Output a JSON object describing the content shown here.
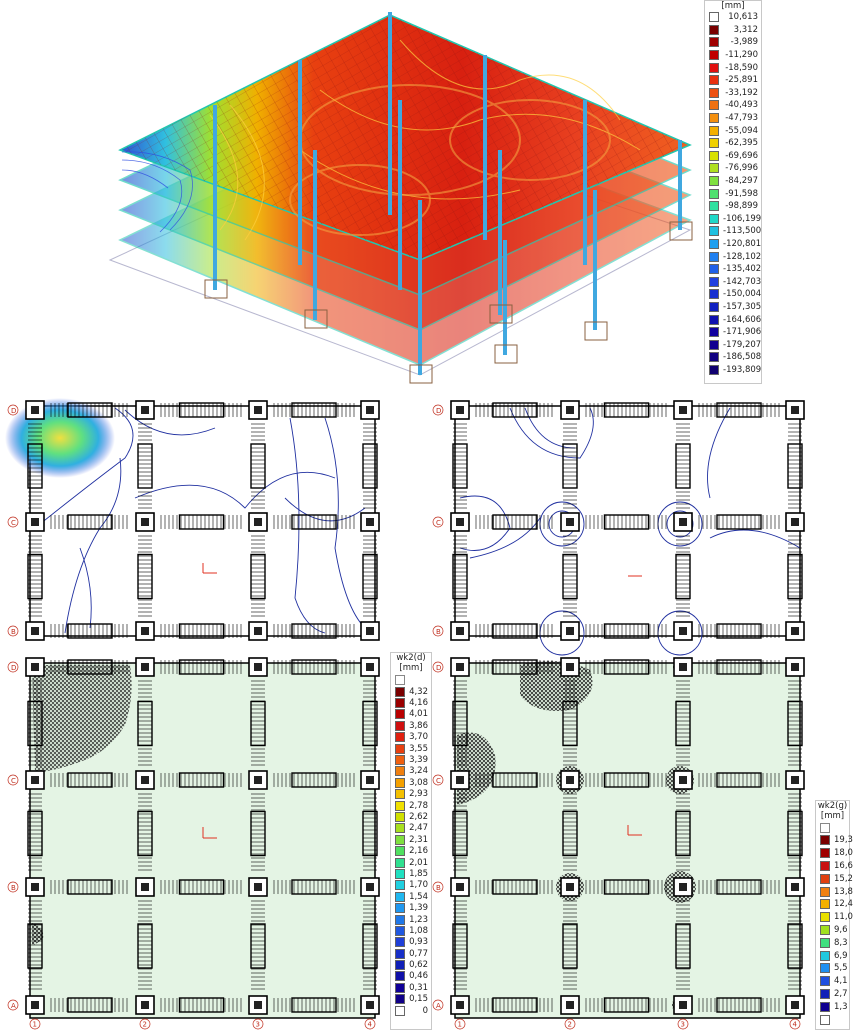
{
  "legend_top": {
    "header": "[mm]",
    "colors": [
      "#ffffff",
      "#7a0000",
      "#a00000",
      "#c00000",
      "#e01010",
      "#e83010",
      "#ee5010",
      "#f07010",
      "#f49010",
      "#f4b000",
      "#f0d000",
      "#d8e000",
      "#b0e020",
      "#80e040",
      "#50e070",
      "#30e0a0",
      "#20d8c8",
      "#20c0e0",
      "#20a0f0",
      "#2080f0",
      "#2060e8",
      "#2040e0",
      "#1830d0",
      "#1020c0",
      "#1010b0",
      "#1000a0",
      "#100090",
      "#100080",
      "#100070"
    ],
    "labels": [
      "10,613",
      "3,312",
      "-3,989",
      "-11,290",
      "-18,590",
      "-25,891",
      "-33,192",
      "-40,493",
      "-47,793",
      "-55,094",
      "-62,395",
      "-69,696",
      "-76,996",
      "-84,297",
      "-91,598",
      "-98,899",
      "-106,199",
      "-113,500",
      "-120,801",
      "-128,102",
      "-135,402",
      "-142,703",
      "-150,004",
      "-157,305",
      "-164,606",
      "-171,906",
      "-179,207",
      "-186,508",
      "-193,809"
    ]
  },
  "legend_d": {
    "title": "wk2(d)",
    "unit": "[mm]",
    "labels": [
      "4,32",
      "4,16",
      "4,01",
      "3,86",
      "3,70",
      "3,55",
      "3,39",
      "3,24",
      "3,08",
      "2,93",
      "2,78",
      "2,62",
      "2,47",
      "2,31",
      "2,16",
      "2,01",
      "1,85",
      "1,70",
      "1,54",
      "1,39",
      "1,23",
      "1,08",
      "0,93",
      "0,77",
      "0,62",
      "0,46",
      "0,31",
      "0,15",
      "0"
    ],
    "colors": [
      "#7a0000",
      "#9a0000",
      "#b80000",
      "#d01010",
      "#e02010",
      "#e84010",
      "#f06010",
      "#f08010",
      "#f4a000",
      "#f4c000",
      "#f0e000",
      "#d0e000",
      "#a8e020",
      "#80e040",
      "#50e060",
      "#30e090",
      "#20e0c0",
      "#20d0e0",
      "#20b8f0",
      "#2098f0",
      "#2078e8",
      "#2058e0",
      "#2040d8",
      "#1830c8",
      "#1020b8",
      "#1010a8",
      "#100098",
      "#100088",
      "#ffffff"
    ]
  },
  "legend_g": {
    "title": "wk2(g)",
    "unit": "[mm]",
    "labels": [
      "19,3",
      "18,0",
      "16,6",
      "15,2",
      "13,8",
      "12,4",
      "11,0",
      "9,6",
      "8,3",
      "6,9",
      "5,5",
      "4,1",
      "2,7",
      "1,3",
      ""
    ],
    "colors": [
      "#7a0000",
      "#a00000",
      "#c81010",
      "#e04010",
      "#f08010",
      "#f4b000",
      "#e8e000",
      "#a0e020",
      "#40e080",
      "#20c8e0",
      "#2090f0",
      "#2050e0",
      "#1020b8",
      "#100090",
      "#ffffff"
    ]
  },
  "axes": {
    "top_rows": [
      "D",
      "C",
      "B"
    ],
    "bottom_rows": [
      "D",
      "C",
      "B",
      "A"
    ],
    "columns": [
      "1",
      "2",
      "3",
      "4"
    ]
  }
}
